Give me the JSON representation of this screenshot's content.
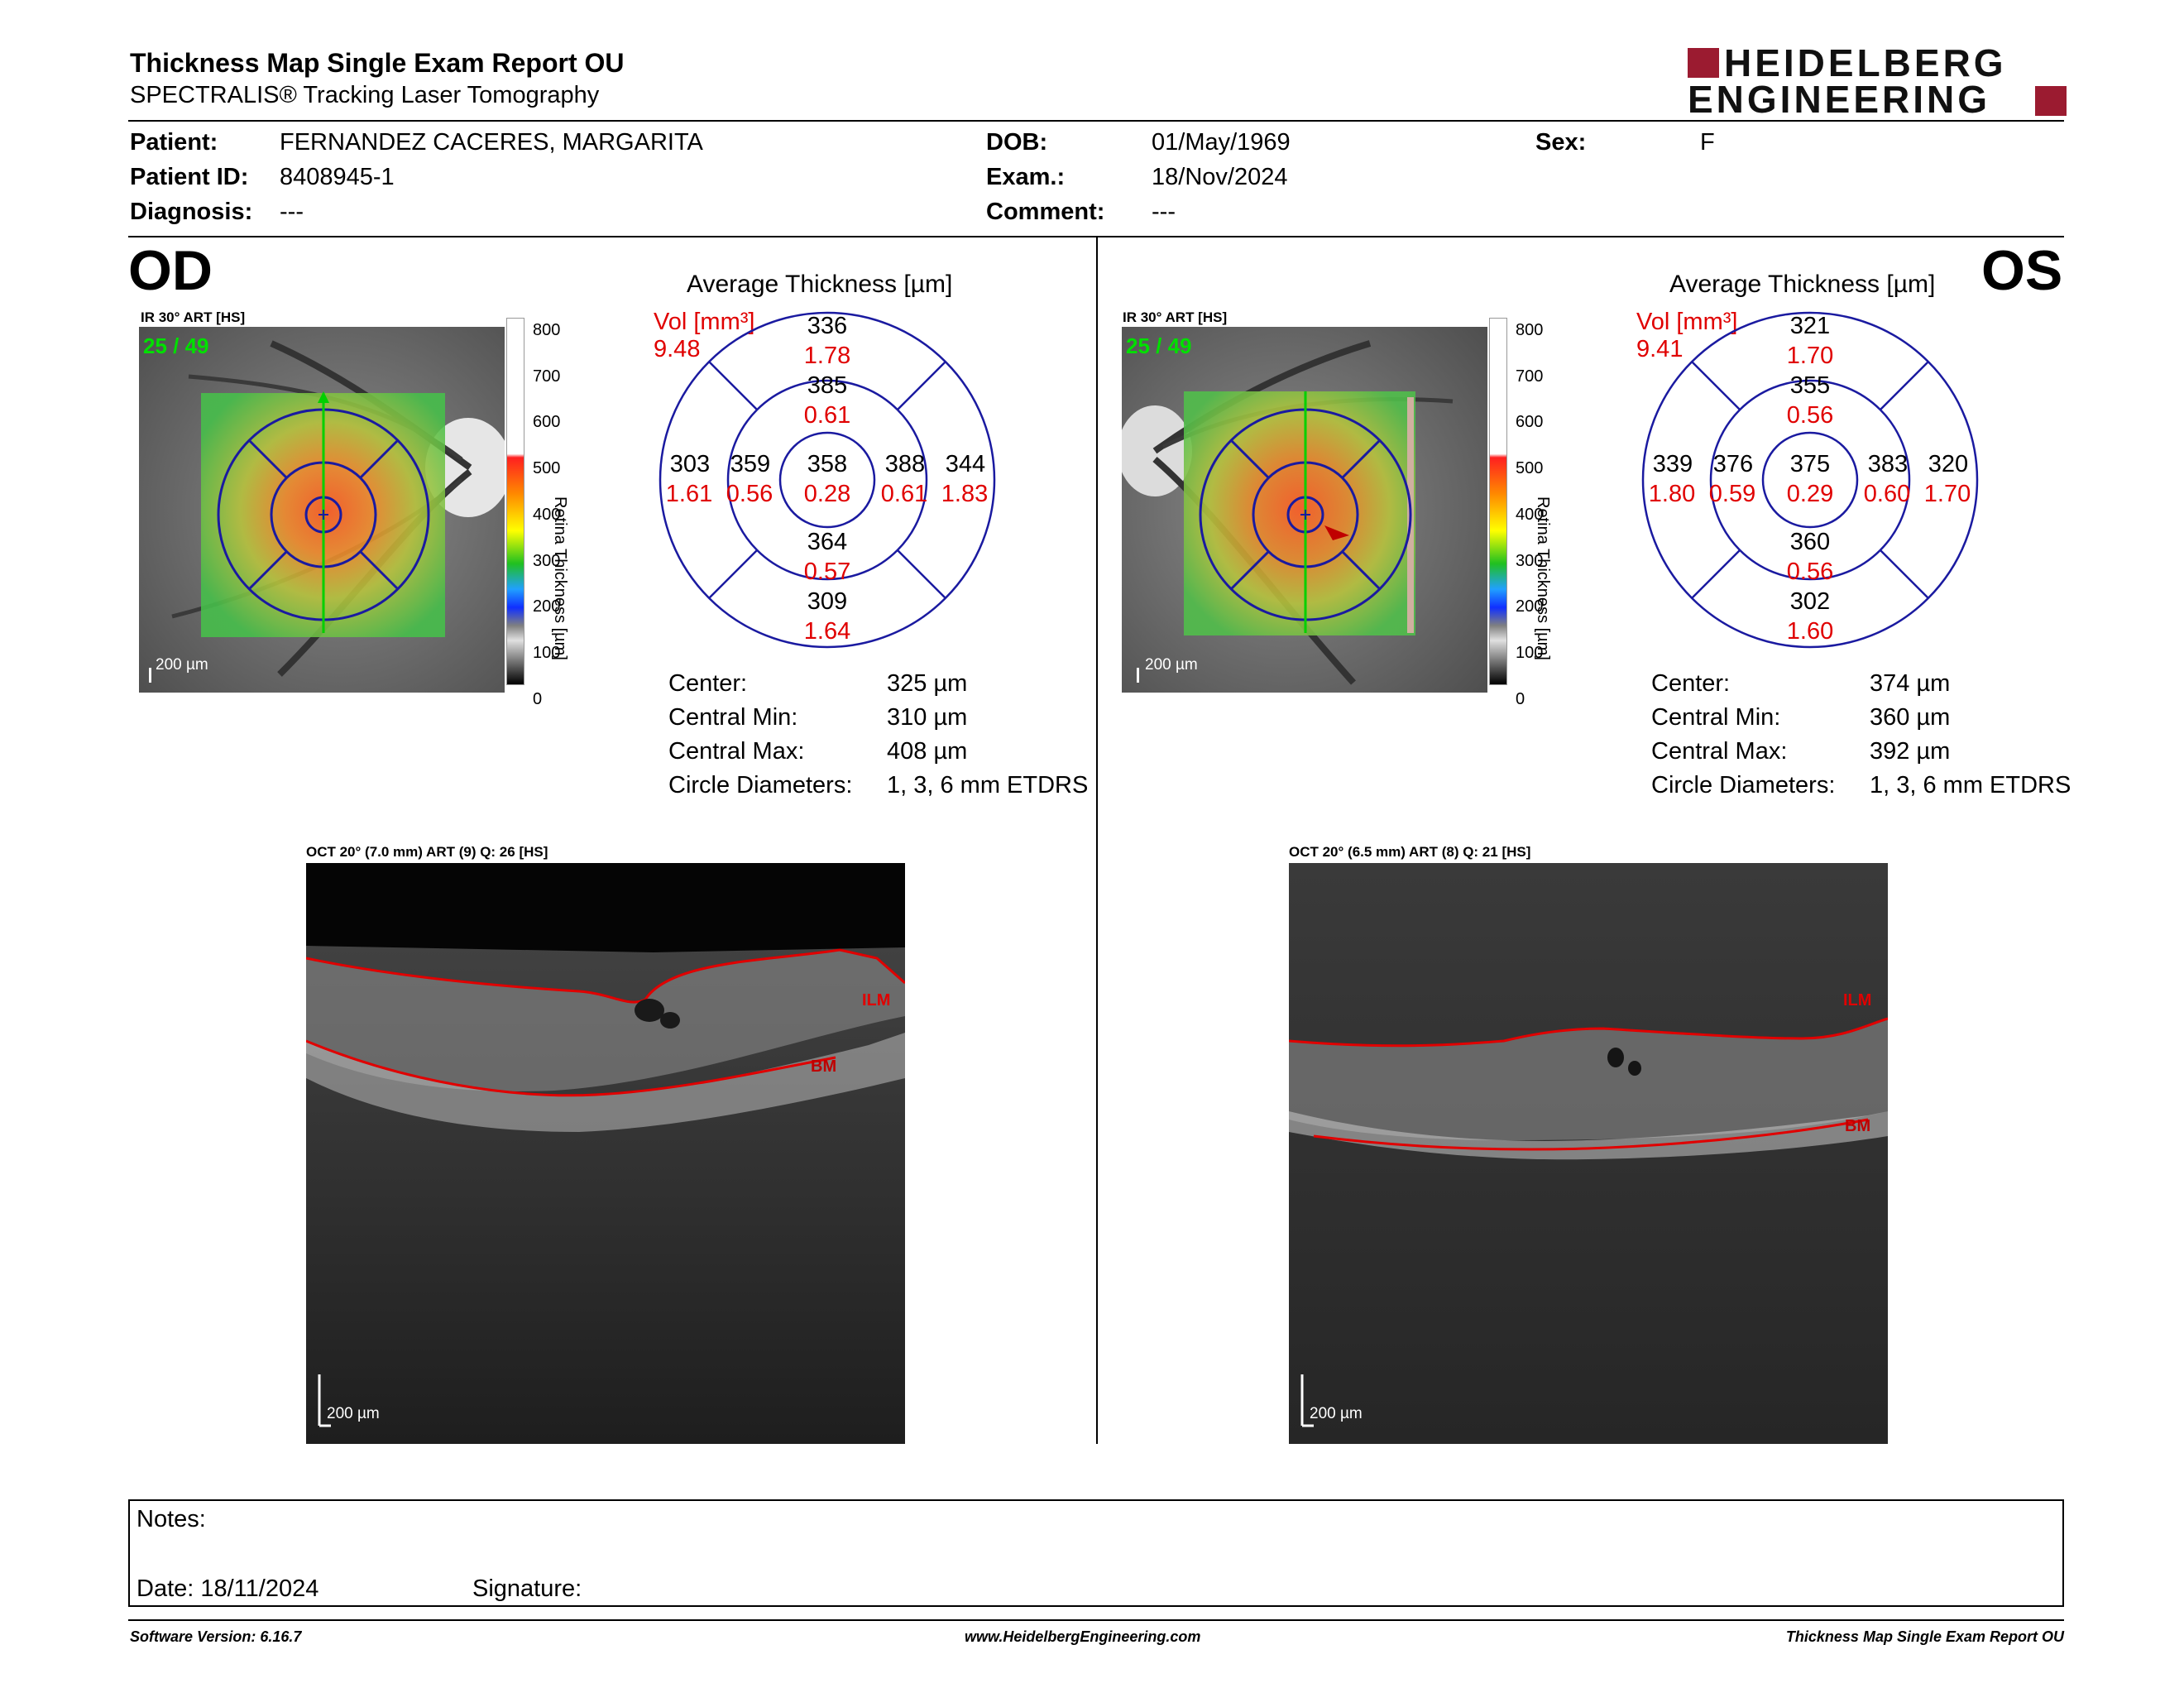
{
  "header": {
    "title": "Thickness Map Single Exam Report OU",
    "subtitle": "SPECTRALIS® Tracking Laser Tomography",
    "logo_line1": "HEIDELBERG",
    "logo_line2": "ENGINEERING"
  },
  "patient": {
    "patient_label": "Patient:",
    "patient_value": "FERNANDEZ CACERES, MARGARITA",
    "id_label": "Patient ID:",
    "id_value": "8408945-1",
    "diagnosis_label": "Diagnosis:",
    "diagnosis_value": "---",
    "dob_label": "DOB:",
    "dob_value": "01/May/1969",
    "exam_label": "Exam.:",
    "exam_value": "18/Nov/2024",
    "comment_label": "Comment:",
    "comment_value": "---",
    "sex_label": "Sex:",
    "sex_value": "F"
  },
  "colorbar": {
    "axis_label": "Retina Thickness [µm]",
    "ticks": [
      "800",
      "700",
      "600",
      "500",
      "400",
      "300",
      "200",
      "100",
      "0"
    ]
  },
  "od": {
    "eye": "OD",
    "ir_label": "IR 30° ART [HS]",
    "frames": "25 / 49",
    "scale": "200 µm",
    "chart_title": "Average Thickness [µm]",
    "vol_label": "Vol [mm³]",
    "vol_value": "9.48",
    "sectors": {
      "outer_sup": {
        "t": "336",
        "v": "1.78"
      },
      "inner_sup": {
        "t": "385",
        "v": "0.61"
      },
      "outer_nasal_left": {
        "t": "303",
        "v": "1.61"
      },
      "inner_left": {
        "t": "359",
        "v": "0.56"
      },
      "center": {
        "t": "358",
        "v": "0.28"
      },
      "inner_right": {
        "t": "388",
        "v": "0.61"
      },
      "outer_right": {
        "t": "344",
        "v": "1.83"
      },
      "inner_inf": {
        "t": "364",
        "v": "0.57"
      },
      "outer_inf": {
        "t": "309",
        "v": "1.64"
      }
    },
    "stats": [
      {
        "label": "Center:",
        "value": "325 µm"
      },
      {
        "label": "Central Min:",
        "value": "310 µm"
      },
      {
        "label": "Central Max:",
        "value": "408 µm"
      },
      {
        "label": "Circle Diameters:",
        "value": "1, 3, 6 mm ETDRS"
      }
    ],
    "oct_label": "OCT 20° (7.0 mm) ART (9) Q: 26 [HS]",
    "oct_scale": "200 µm",
    "ilm": "ILM",
    "bm": "BM"
  },
  "os": {
    "eye": "OS",
    "ir_label": "IR 30° ART [HS]",
    "frames": "25 / 49",
    "scale": "200 µm",
    "chart_title": "Average Thickness [µm]",
    "vol_label": "Vol [mm³]",
    "vol_value": "9.41",
    "sectors": {
      "outer_sup": {
        "t": "321",
        "v": "1.70"
      },
      "inner_sup": {
        "t": "355",
        "v": "0.56"
      },
      "outer_nasal_left": {
        "t": "339",
        "v": "1.80"
      },
      "inner_left": {
        "t": "376",
        "v": "0.59"
      },
      "center": {
        "t": "375",
        "v": "0.29"
      },
      "inner_right": {
        "t": "383",
        "v": "0.60"
      },
      "outer_right": {
        "t": "320",
        "v": "1.70"
      },
      "inner_inf": {
        "t": "360",
        "v": "0.56"
      },
      "outer_inf": {
        "t": "302",
        "v": "1.60"
      }
    },
    "stats": [
      {
        "label": "Center:",
        "value": "374 µm"
      },
      {
        "label": "Central Min:",
        "value": "360 µm"
      },
      {
        "label": "Central Max:",
        "value": "392 µm"
      },
      {
        "label": "Circle Diameters:",
        "value": "1, 3, 6 mm ETDRS"
      }
    ],
    "oct_label": "OCT 20° (6.5 mm) ART (8) Q: 21 [HS]",
    "oct_scale": "200 µm",
    "ilm": "ILM",
    "bm": "BM"
  },
  "notes": {
    "notes_label": "Notes:",
    "date_label": "Date: 18/11/2024",
    "signature_label": "Signature:"
  },
  "footer": {
    "left": "Software Version: 6.16.7",
    "center": "www.HeidelbergEngineering.com",
    "right": "Thickness Map Single Exam Report OU"
  },
  "colors": {
    "grid_blue": "#1a1aa0",
    "volume_red": "#e00000",
    "logo_red": "#9b1b30",
    "segment_red": "#d01010"
  }
}
